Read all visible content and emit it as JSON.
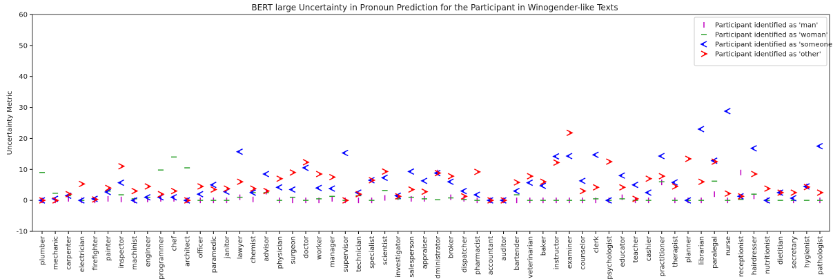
{
  "chart_data": {
    "type": "scatter",
    "title": "BERT large Uncertainty in Pronoun Prediction for the Participant in Winogender-like Texts",
    "ylabel": "Uncertainty Metric",
    "categories": [
      "plumber",
      "mechanic",
      "carpenter",
      "electrician",
      "firefighter",
      "painter",
      "inspector",
      "machinist",
      "engineer",
      "programmer",
      "chef",
      "architect",
      "officer",
      "paramedic",
      "janitor",
      "lawyer",
      "chemist",
      "advisor",
      "physician",
      "surgeon",
      "doctor",
      "worker",
      "manager",
      "supervisor",
      "technician",
      "specialist",
      "scientist",
      "investigator",
      "salesperson",
      "appraiser",
      "administrator",
      "broker",
      "dispatcher",
      "pharmacist",
      "accountant",
      "auditor",
      "bartender",
      "veterinarian",
      "baker",
      "instructor",
      "examiner",
      "counselor",
      "clerk",
      "psychologist",
      "educator",
      "teacher",
      "cashier",
      "practitioner",
      "therapist",
      "planner",
      "librarian",
      "paralegal",
      "nurse",
      "receptionist",
      "hairdresser",
      "nutritionist",
      "dietitian",
      "secretary",
      "hygienist",
      "pathologist"
    ],
    "series": [
      {
        "name": "Participant identified as 'man'",
        "color": "#bf00bf",
        "marker": "vline",
        "values": [
          0,
          0,
          0.5,
          0,
          0,
          0.5,
          0.3,
          0,
          0.3,
          0.5,
          0.5,
          0,
          0,
          0,
          0,
          1,
          0.3,
          2.8,
          0,
          0,
          0,
          0,
          0.5,
          0,
          0,
          0,
          0.8,
          1,
          0.5,
          0.5,
          9,
          1,
          0.5,
          0,
          0,
          0,
          0,
          0,
          0,
          0,
          0,
          0,
          0,
          0,
          1,
          0,
          0,
          5.8,
          0,
          0,
          0,
          2,
          0,
          9,
          1.3,
          0,
          2.5,
          0,
          4.5,
          0
        ]
      },
      {
        "name": "Participant identified as 'woman'",
        "color": "#2ca02c",
        "marker": "hline",
        "values": [
          9,
          2.3,
          1.5,
          0,
          0.3,
          3,
          1.8,
          0.5,
          1,
          9.8,
          14,
          10.5,
          0,
          0,
          0,
          1,
          2.5,
          2.5,
          0,
          1,
          0,
          0.5,
          1.3,
          0,
          1.5,
          0,
          3.2,
          0.5,
          1,
          0.5,
          0.2,
          0.8,
          0.3,
          0,
          0,
          0,
          1.8,
          0,
          0,
          0,
          0,
          0,
          0.5,
          0,
          0.5,
          0,
          0,
          6,
          0,
          0,
          0,
          6.2,
          0,
          0.3,
          2,
          0,
          0,
          0,
          0,
          0
        ]
      },
      {
        "name": "Participant identified as 'someone'",
        "color": "#0000ff",
        "marker": "tri-left",
        "values": [
          0,
          0.5,
          1.5,
          0,
          0.5,
          2.7,
          5.7,
          0,
          1,
          1,
          1,
          0,
          2,
          5,
          2.8,
          15.7,
          2.5,
          8.5,
          4.2,
          3.5,
          10.5,
          4,
          3.8,
          15.3,
          2.5,
          6.5,
          7.3,
          1.5,
          9.3,
          6.3,
          8.8,
          6,
          3,
          1.8,
          0,
          0,
          3,
          5.7,
          4.7,
          14.2,
          14.3,
          6.3,
          14.7,
          0,
          8,
          5,
          2.5,
          14.3,
          5.8,
          0,
          23,
          12.8,
          28.8,
          1.3,
          16.8,
          0,
          2.5,
          0.7,
          4.5,
          17.5
        ]
      },
      {
        "name": "Participant identified as 'other'",
        "color": "#ff0000",
        "marker": "tri-right",
        "values": [
          0,
          0,
          2,
          5.3,
          0.3,
          4,
          11,
          3,
          4.5,
          2,
          3,
          0,
          4.5,
          3.5,
          3.8,
          6,
          3.8,
          3,
          7,
          9,
          12.3,
          8.5,
          7.5,
          0,
          2,
          6.5,
          9.3,
          1.3,
          3.5,
          2.8,
          8.8,
          7.8,
          1.3,
          9.2,
          0,
          0,
          5.8,
          7.8,
          6,
          12.2,
          21.8,
          3,
          4.2,
          12.5,
          4.2,
          0.5,
          7,
          7.8,
          4.5,
          13.4,
          6,
          12.5,
          2.2,
          1.3,
          8.5,
          3.8,
          2.5,
          2.5,
          4.3,
          2.5
        ]
      }
    ],
    "ylim": [
      -10,
      60
    ],
    "yticks": [
      -10,
      0,
      10,
      20,
      30,
      40,
      50,
      60
    ],
    "grid": false,
    "legend": "upper right"
  }
}
